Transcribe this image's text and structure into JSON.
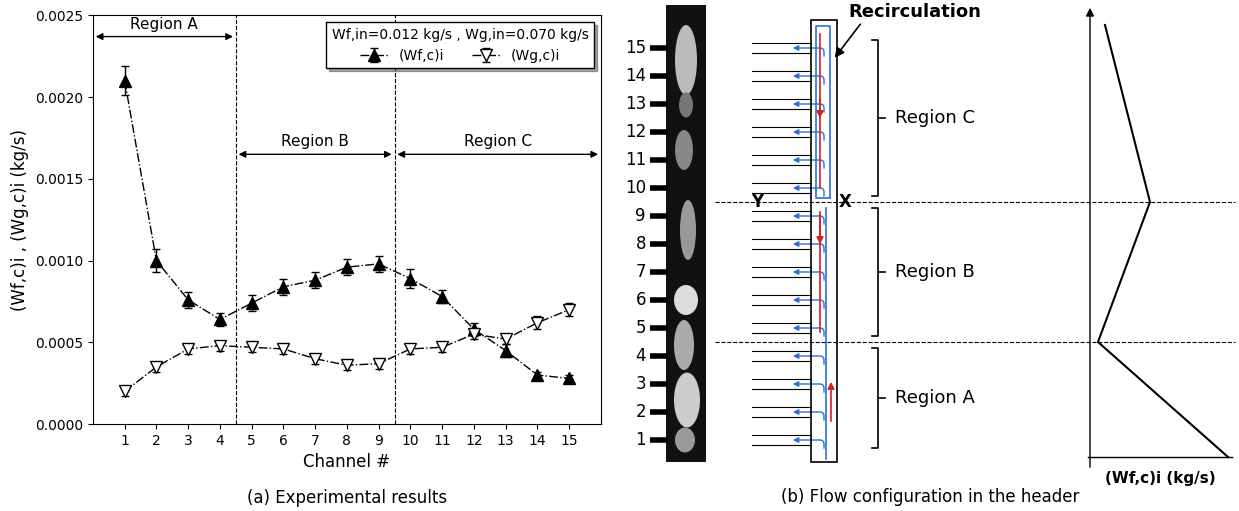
{
  "chart_data": {
    "type": "line",
    "title": "(a) Experimental results",
    "x_label": "Channel #",
    "y_label": "(Wf,c)i , (Wg,c)i (kg/s)",
    "x": [
      1,
      2,
      3,
      4,
      5,
      6,
      7,
      8,
      9,
      10,
      11,
      12,
      13,
      14,
      15
    ],
    "series": [
      {
        "name": "(Wf,c)i",
        "color": "#000000",
        "marker": "filled_triangle_up",
        "line_style": "dashdot",
        "values": [
          0.0021,
          0.001,
          0.00076,
          0.00064,
          0.00074,
          0.00084,
          0.00088,
          0.00096,
          0.00098,
          0.00089,
          0.00078,
          0.00058,
          0.00045,
          0.0003,
          0.00028
        ],
        "errors": [
          9e-05,
          7e-05,
          5e-05,
          4e-05,
          5e-05,
          5e-05,
          5e-05,
          5e-05,
          5e-05,
          6e-05,
          4e-05,
          4e-05,
          4e-05,
          2e-05,
          2e-05
        ]
      },
      {
        "name": "(Wg,c)i",
        "color": "#000000",
        "marker": "open_triangle_down",
        "line_style": "dashdot",
        "values": [
          0.0002,
          0.00035,
          0.00046,
          0.00048,
          0.00047,
          0.00046,
          0.0004,
          0.00036,
          0.00037,
          0.00046,
          0.00047,
          0.00055,
          0.00052,
          0.00062,
          0.0007
        ],
        "errors": [
          3e-05,
          3e-05,
          3e-05,
          3e-05,
          3e-05,
          3e-05,
          3e-05,
          3e-05,
          3e-05,
          3e-05,
          3e-05,
          3e-05,
          3e-05,
          4e-05,
          4e-05
        ]
      }
    ],
    "xlim": [
      0,
      16
    ],
    "xticks": [
      1,
      2,
      3,
      4,
      5,
      6,
      7,
      8,
      9,
      10,
      11,
      12,
      13,
      14,
      15
    ],
    "ylim": [
      0,
      0.0025
    ],
    "yticks": [
      {
        "value": 0,
        "label": "0.0000"
      },
      {
        "value": 0.0005,
        "label": "0.0005"
      },
      {
        "value": 0.001,
        "label": "0.0010"
      },
      {
        "value": 0.0015,
        "label": "0.0015"
      },
      {
        "value": 0.002,
        "label": "0.0020"
      },
      {
        "value": 0.0025,
        "label": "0.0025"
      }
    ],
    "legend": "upper right",
    "annotations": [
      {
        "text": "Wf,in=0.012 kg/s , Wg,in=0.070 kg/s"
      }
    ],
    "regions": [
      {
        "label": "Region A",
        "start": 0,
        "end": 4.5,
        "y": 0.00237
      },
      {
        "label": "Region B",
        "start": 4.5,
        "end": 9.5,
        "y": 0.00165
      },
      {
        "label": "Region C",
        "start": 9.5,
        "end": 16,
        "y": 0.00165
      }
    ]
  },
  "diagram": {
    "title": "(b) Flow configuration in the header",
    "channels": [
      1,
      2,
      3,
      4,
      5,
      6,
      7,
      8,
      9,
      10,
      11,
      12,
      13,
      14,
      15
    ],
    "recirculation_label": "Recirculation",
    "junction": {
      "left": "Y",
      "right": "X"
    },
    "regions": [
      {
        "label": "Region A",
        "channels": [
          1,
          4
        ]
      },
      {
        "label": "Region B",
        "channels": [
          5,
          9
        ]
      },
      {
        "label": "Region C",
        "channels": [
          10,
          15
        ]
      }
    ],
    "profile_axis_label": "(Wf,c)i (kg/s)"
  }
}
